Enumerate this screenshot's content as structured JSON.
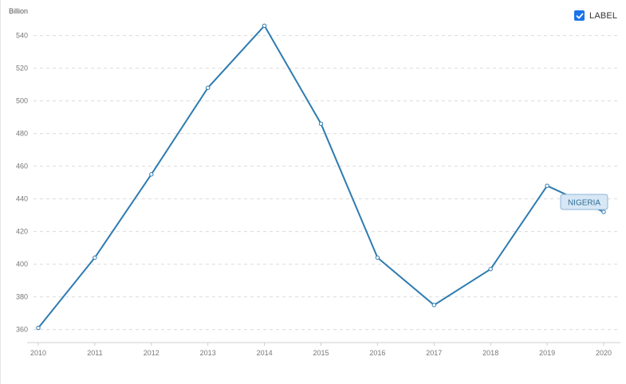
{
  "label_toggle": {
    "text": "LABEL",
    "checked": true
  },
  "chart_data": {
    "type": "line",
    "ylabel": "Billion",
    "x": [
      "2010",
      "2011",
      "2012",
      "2013",
      "2014",
      "2015",
      "2016",
      "2017",
      "2018",
      "2019",
      "2020"
    ],
    "series": [
      {
        "name": "NIGERIA",
        "values": [
          361,
          404,
          455,
          508,
          546,
          486,
          404,
          375,
          397,
          448,
          432
        ]
      }
    ],
    "yticks": [
      360,
      380,
      400,
      420,
      440,
      460,
      480,
      500,
      520,
      540
    ],
    "ylim": [
      352,
      552
    ],
    "grid": true,
    "colors": {
      "line": "#2e7bb0",
      "grid": "#dcdcdc",
      "label_bg": "#d7e7f5",
      "label_border": "#8fb6d8"
    }
  }
}
